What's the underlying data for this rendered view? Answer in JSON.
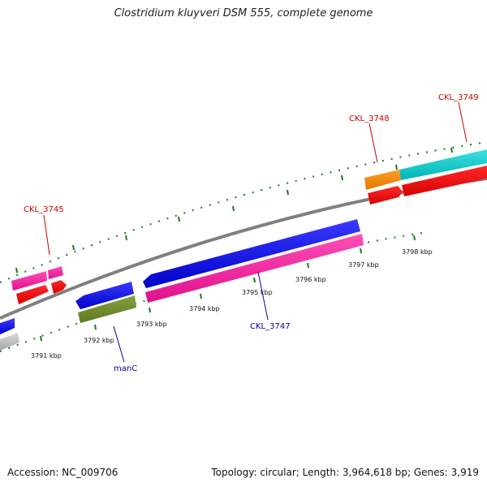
{
  "title": "Clostridium kluyveri DSM 555, complete genome",
  "footer": {
    "accession": "Accession: NC_009706",
    "summary": "Topology: circular; Length: 3,964,618 bp; Genes: 3,919"
  },
  "colors": {
    "backbone": "#808080",
    "tick": "#1a7a1a",
    "label_red": "#cc0000",
    "label_blue": "#000099"
  },
  "scale_labels": [
    "3791 kbp",
    "3792 kbp",
    "3793 kbp",
    "3794 kbp",
    "3795 kbp",
    "3796 kbp",
    "3797 kbp",
    "3798 kbp"
  ],
  "gene_labels": [
    {
      "text": "CKL_3745",
      "color": "#cc0000"
    },
    {
      "text": "CKL_3748",
      "color": "#cc0000"
    },
    {
      "text": "CKL_3749",
      "color": "#cc0000"
    },
    {
      "text": "CKL_3747",
      "color": "#000099"
    },
    {
      "text": "manC",
      "color": "#000099"
    }
  ]
}
